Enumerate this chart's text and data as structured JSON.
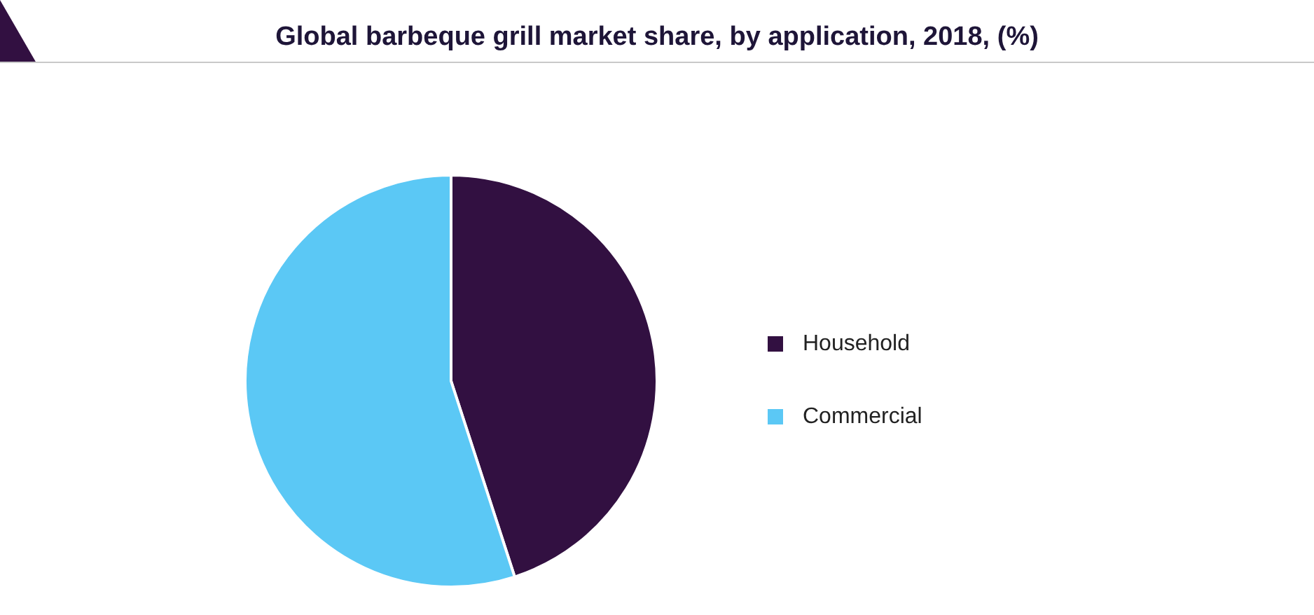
{
  "chart_data": {
    "type": "pie",
    "title": "Global barbeque grill market share, by application, 2018, (%)",
    "categories": [
      "Household",
      "Commercial"
    ],
    "values": [
      45,
      55
    ],
    "colors": [
      "#321041",
      "#5bc8f5"
    ],
    "legend": "right"
  }
}
